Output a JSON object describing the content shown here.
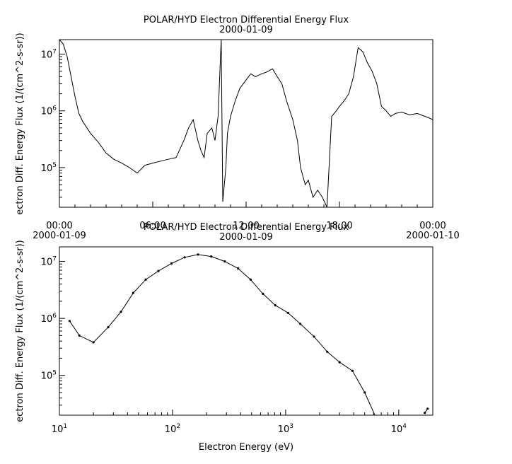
{
  "chart_data": [
    {
      "type": "line",
      "title": "POLAR/HYD  Electron Differential Energy Flux",
      "subtitle": "2000-01-09",
      "ylabel": "ectron Diff. Energy Flux (1/(cm^2-s-sr))",
      "xlabel": "",
      "yscale": "log",
      "ylim": [
        20000,
        18000000
      ],
      "xlim_hours": [
        0,
        24
      ],
      "x_ticks": [
        {
          "hour": 0,
          "label": "00:00",
          "date": "2000-01-09"
        },
        {
          "hour": 6,
          "label": "06:00",
          "date": ""
        },
        {
          "hour": 12,
          "label": "12:00",
          "date": ""
        },
        {
          "hour": 18,
          "label": "18:00",
          "date": ""
        },
        {
          "hour": 24,
          "label": "00:00",
          "date": "2000-01-10"
        }
      ],
      "y_ticks": [
        {
          "value": 100000,
          "base": "10",
          "exp": "5"
        },
        {
          "value": 1000000,
          "base": "10",
          "exp": "6"
        },
        {
          "value": 10000000,
          "base": "10",
          "exp": "7"
        }
      ],
      "series": [
        {
          "hours": [
            0.0,
            0.25,
            0.5,
            0.75,
            1.0,
            1.25,
            1.5,
            2.0,
            2.5,
            3.0,
            3.5,
            4.0,
            4.5,
            5.0,
            5.5,
            6.0,
            6.5,
            7.0,
            7.5,
            8.0,
            8.3,
            8.6,
            8.9,
            9.1,
            9.3,
            9.5,
            9.8,
            10.0,
            10.2,
            10.4,
            10.5,
            10.7,
            10.8,
            11.0,
            11.3,
            11.6,
            12.0,
            12.3,
            12.6,
            13.0,
            13.3,
            13.7,
            14.0,
            14.3,
            14.6,
            15.0,
            15.3,
            15.5,
            15.8,
            16.0,
            16.3,
            16.6,
            16.9,
            17.2,
            17.5,
            17.8,
            18.0,
            18.3,
            18.6,
            18.9,
            19.2,
            19.5,
            19.8,
            20.1,
            20.4,
            20.7,
            21.0,
            21.3,
            21.6,
            22.0,
            22.5,
            23.0,
            23.5,
            24.0
          ],
          "values": [
            18000000,
            15000000,
            9000000,
            4000000,
            1800000,
            900000,
            650000,
            400000,
            280000,
            180000,
            140000,
            120000,
            100000,
            80000,
            110000,
            120000,
            130000,
            140000,
            150000,
            300000,
            500000,
            700000,
            300000,
            200000,
            150000,
            400000,
            500000,
            300000,
            800000,
            18000000,
            25000,
            100000,
            400000,
            800000,
            1500000,
            2500000,
            3500000,
            4500000,
            4000000,
            4500000,
            4800000,
            5500000,
            4000000,
            3000000,
            1500000,
            700000,
            300000,
            100000,
            50000,
            60000,
            30000,
            40000,
            30000,
            20000,
            800000,
            1000000,
            1200000,
            1500000,
            2000000,
            4000000,
            13000000,
            11000000,
            7000000,
            5000000,
            3000000,
            1200000,
            1000000,
            800000,
            900000,
            950000,
            850000,
            900000,
            800000,
            700000
          ]
        }
      ]
    },
    {
      "type": "line",
      "title": "POLAR/HYD  Electron Differential Energy Flux",
      "subtitle": "2000-01-09",
      "xlabel": "Electron Energy (eV)",
      "ylabel": "ectron Diff. Energy Flux (1/(cm^2-s-sr))",
      "xscale": "log",
      "yscale": "log",
      "xlim": [
        10,
        20000
      ],
      "ylim": [
        20000,
        18000000
      ],
      "x_ticks": [
        {
          "value": 10,
          "base": "10",
          "exp": "1"
        },
        {
          "value": 100,
          "base": "10",
          "exp": "2"
        },
        {
          "value": 1000,
          "base": "10",
          "exp": "3"
        },
        {
          "value": 10000,
          "base": "10",
          "exp": "4"
        }
      ],
      "y_ticks": [
        {
          "value": 100000,
          "base": "10",
          "exp": "5"
        },
        {
          "value": 1000000,
          "base": "10",
          "exp": "6"
        },
        {
          "value": 10000000,
          "base": "10",
          "exp": "7"
        }
      ],
      "series": [
        {
          "x": [
            12.3,
            15.0,
            20.0,
            27.0,
            35.0,
            45.0,
            58.0,
            75.0,
            98.0,
            128.0,
            168.0,
            220.0,
            290.0,
            380.0,
            490.0,
            630.0,
            810.0,
            1050.0,
            1350.0,
            1780.0,
            2330.0,
            3000.0,
            3900.0,
            5000.0,
            6300.0
          ],
          "y": [
            900000,
            500000,
            380000,
            700000,
            1300000,
            2800000,
            4800000,
            6800000,
            9200000,
            11800000,
            13200000,
            12200000,
            10000000,
            7500000,
            4800000,
            2700000,
            1700000,
            1250000,
            800000,
            480000,
            260000,
            170000,
            120000,
            50000,
            18000
          ],
          "markers": true
        },
        {
          "x": [
            17000,
            18000
          ],
          "y": [
            22000,
            26000
          ],
          "markers": true
        }
      ]
    }
  ]
}
